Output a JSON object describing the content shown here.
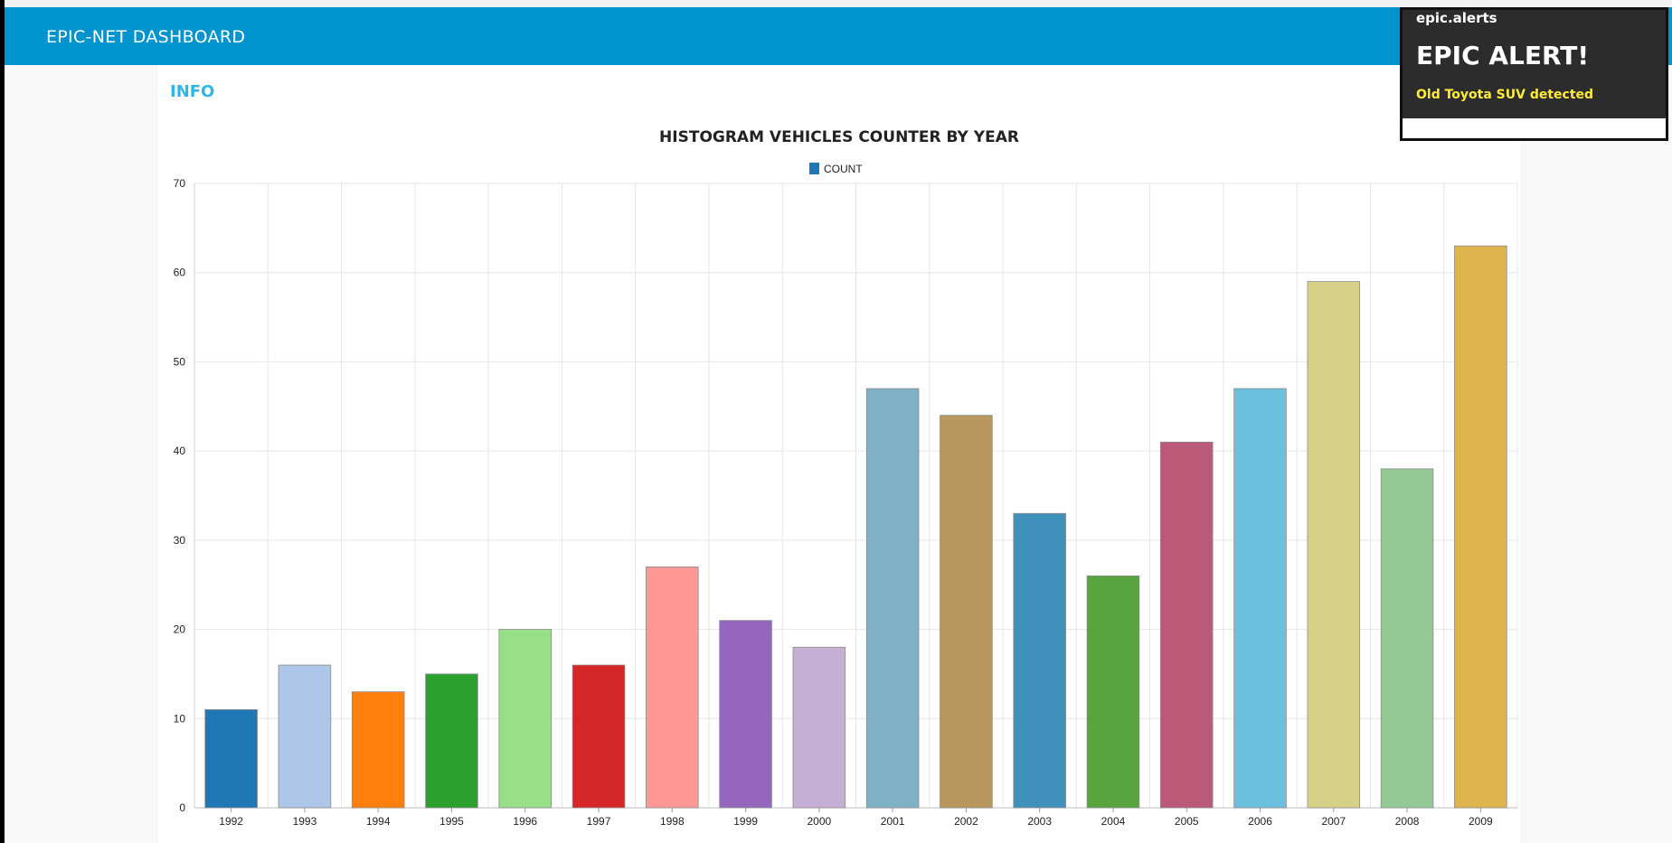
{
  "header": {
    "title": "EPIC-NET DASHBOARD"
  },
  "card": {
    "title": "INFO"
  },
  "toast": {
    "topic": "epic.alerts",
    "heading": "EPIC ALERT!",
    "message": "Old Toyota SUV detected"
  },
  "colors": {
    "header_bg": "#0094ce",
    "card_title": "#2db7e6",
    "toast_bg": "#2c2c2c",
    "toast_message": "#ffeb3b"
  },
  "chart_data": {
    "type": "bar",
    "title": "HISTOGRAM VEHICLES COUNTER BY YEAR",
    "legend": {
      "label": "COUNT",
      "color": "#1f77b4",
      "position": "top-center"
    },
    "categories": [
      "1992",
      "1993",
      "1994",
      "1995",
      "1996",
      "1997",
      "1998",
      "1999",
      "2000",
      "2001",
      "2002",
      "2003",
      "2004",
      "2005",
      "2006",
      "2007",
      "2008",
      "2009"
    ],
    "series": [
      {
        "name": "COUNT",
        "values": [
          11,
          16,
          13,
          15,
          20,
          16,
          27,
          21,
          18,
          47,
          44,
          33,
          26,
          41,
          47,
          59,
          38,
          63
        ]
      }
    ],
    "bar_colors": [
      "#1f77b4",
      "#aec7e8",
      "#ff7f0e",
      "#2ca02c",
      "#98df8a",
      "#d62728",
      "#ff9896",
      "#9467bd",
      "#c5b0d5",
      "#7fb2c5",
      "#b9985f",
      "#3f91bb",
      "#58a43e",
      "#bb5979",
      "#6bc0df",
      "#d6d186",
      "#93c995",
      "#dfb34e"
    ],
    "ylim": [
      0,
      70
    ],
    "yticks": [
      0,
      10,
      20,
      30,
      40,
      50,
      60,
      70
    ],
    "xlabel": "",
    "ylabel": "",
    "grid": true
  }
}
